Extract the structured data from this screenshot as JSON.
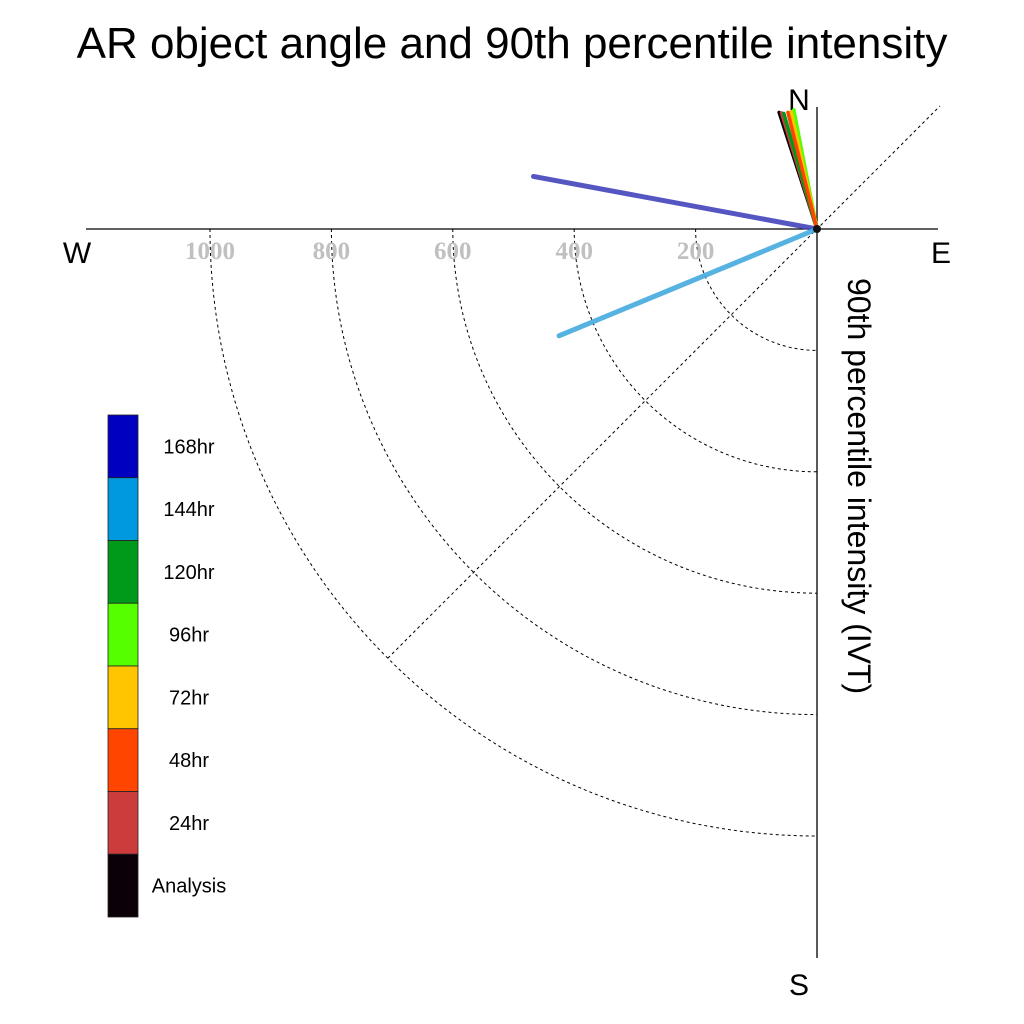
{
  "chart_data": {
    "type": "polar-vector",
    "title": "AR object angle and 90th percentile intensity",
    "ylabel": "90th percentile intensity (IVT)",
    "compass": {
      "north": "N",
      "south": "S",
      "east": "E",
      "west": "W"
    },
    "radial_ticks": [
      200,
      400,
      600,
      800,
      1000
    ],
    "radial_tick_labels": [
      "200",
      "400",
      "600",
      "800",
      "1000"
    ],
    "rlim": [
      0,
      1000
    ],
    "grid": true,
    "legend_position": "left",
    "legend": [
      {
        "label": "168hr",
        "color": "#0000c0"
      },
      {
        "label": "144hr",
        "color": "#0099e0"
      },
      {
        "label": "120hr",
        "color": "#009a1a"
      },
      {
        "label": "96hr",
        "color": "#55ff00"
      },
      {
        "label": "72hr",
        "color": "#ffc500"
      },
      {
        "label": "48hr",
        "color": "#ff4500"
      },
      {
        "label": "24hr",
        "color": "#cc3c3c"
      },
      {
        "label": "Analysis",
        "color": "#0b0008"
      }
    ],
    "series": [
      {
        "name": "168hr",
        "color": "#4444bb",
        "angle_deg": -79.5,
        "intensity": 475
      },
      {
        "name": "144hr",
        "color": "#44aadd",
        "angle_deg": -112.5,
        "intensity": 460
      },
      {
        "name": "120hr",
        "color": "#009a1a",
        "angle_deg": -16,
        "intensity": 198
      },
      {
        "name": "96hr",
        "color": "#55ff00",
        "angle_deg": -11,
        "intensity": 200
      },
      {
        "name": "72hr",
        "color": "#ffc500",
        "angle_deg": -12.5,
        "intensity": 198
      },
      {
        "name": "48hr",
        "color": "#ff4500",
        "angle_deg": -14,
        "intensity": 198
      },
      {
        "name": "24hr",
        "color": "#cc3c3c",
        "angle_deg": -17,
        "intensity": 200
      },
      {
        "name": "Analysis",
        "color": "#000000",
        "angle_deg": -18,
        "intensity": 202
      }
    ]
  }
}
